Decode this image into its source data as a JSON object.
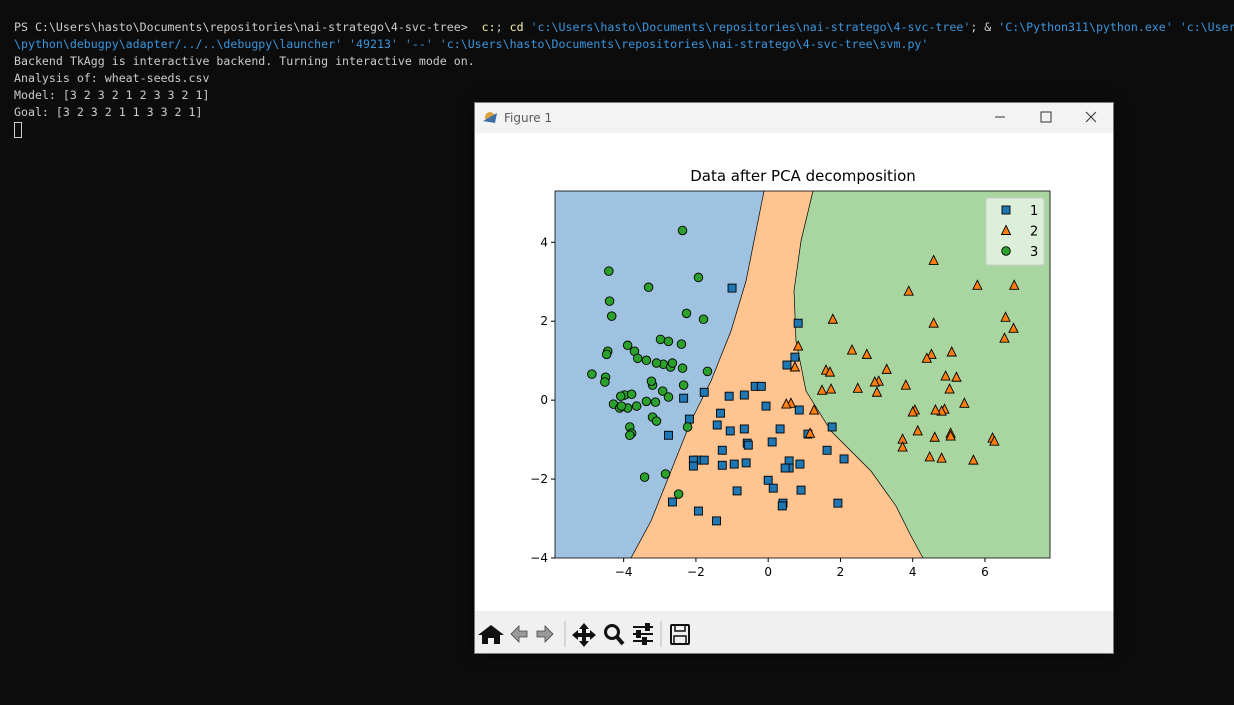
{
  "terminal": {
    "lines": [
      [
        {
          "text": "PS C:\\Users\\hasto\\Documents\\repositories\\nai-stratego\\4-svc-tree> ",
          "color": "#cccccc"
        },
        {
          "text": " c:",
          "color": "#f9f1a5"
        },
        {
          "text": "; ",
          "color": "#cccccc"
        },
        {
          "text": "cd",
          "color": "#f9f1a5"
        },
        {
          "text": " ",
          "color": "#cccccc"
        },
        {
          "text": "'c:\\Users\\hasto\\Documents\\repositories\\nai-stratego\\4-svc-tree'",
          "color": "#3a96dd"
        },
        {
          "text": "; & ",
          "color": "#cccccc"
        },
        {
          "text": "'C:\\Python311\\python.exe'",
          "color": "#3a96dd"
        },
        {
          "text": " ",
          "color": "#cccccc"
        },
        {
          "text": "'c:\\Users",
          "color": "#3a96dd"
        }
      ],
      [
        {
          "text": "\\python\\debugpy\\adapter/../..\\debugpy\\launcher' '49213' '--' 'c:\\Users\\hasto\\Documents\\repositories\\nai-stratego\\4-svc-tree\\svm.py'",
          "color": "#3a96dd"
        }
      ],
      [
        {
          "text": "Backend TkAgg is interactive backend. Turning interactive mode on.",
          "color": "#cccccc"
        }
      ],
      [
        {
          "text": "Analysis of: wheat-seeds.csv",
          "color": "#cccccc"
        }
      ],
      [
        {
          "text": "Model: [3 2 3 2 1 2 3 3 2 1]",
          "color": "#cccccc"
        }
      ],
      [
        {
          "text": "Goal: [3 2 3 2 1 1 3 3 2 1]",
          "color": "#cccccc"
        }
      ]
    ]
  },
  "window": {
    "title": "Figure 1"
  },
  "chart_data": {
    "type": "scatter",
    "title": "Data after PCA decomposition",
    "xlim": [
      -5.9,
      7.8
    ],
    "ylim": [
      -4,
      5.3
    ],
    "xticks": [
      {
        "value": -4,
        "label": "−4"
      },
      {
        "value": -2,
        "label": "−2"
      },
      0,
      2,
      4,
      6
    ],
    "yticks": [
      {
        "value": -4,
        "label": "−4"
      },
      {
        "value": -2,
        "label": "−2"
      },
      0,
      2,
      4
    ],
    "legend": "upper right",
    "series": [
      {
        "name": "1",
        "color": "#1f77b4",
        "marker": "s",
        "x": [
          -1.0,
          0.83,
          0.74,
          0.52,
          -1.77,
          -1.08,
          -0.36,
          -0.19,
          -2.34,
          -0.66,
          -1.32,
          -0.06,
          0.86,
          -1.41,
          -2.18,
          -0.66,
          -1.05,
          -0.58,
          -0.55,
          0.33,
          0.11,
          1.1,
          1.77,
          -2.76,
          -1.96,
          -1.27,
          -2.07,
          -2.07,
          -1.77,
          -0.94,
          -0.61,
          -1.27,
          0.58,
          0.58,
          0.88,
          1.63,
          2.1,
          0,
          0.14,
          0.41,
          0.39,
          0.91,
          -0.86,
          -1.93,
          -2.65,
          -1.43,
          1.93,
          0.47
        ],
        "y": [
          2.84,
          1.95,
          1.09,
          0.89,
          0.2,
          0.1,
          0.35,
          0.35,
          0.05,
          0.13,
          -0.33,
          -0.15,
          -0.25,
          -0.63,
          -0.48,
          -0.73,
          -0.78,
          -1.09,
          -1.14,
          -0.73,
          -1.06,
          -0.86,
          -0.68,
          -0.89,
          -1.52,
          -1.27,
          -1.52,
          -1.67,
          -1.52,
          -1.62,
          -1.59,
          -1.65,
          -1.54,
          -1.72,
          -1.62,
          -1.27,
          -1.49,
          -2.03,
          -2.23,
          -2.61,
          -2.68,
          -2.28,
          -2.3,
          -2.81,
          -2.58,
          -3.06,
          -2.61,
          -1.72
        ]
      },
      {
        "name": "2",
        "color": "#ff7f0e",
        "marker": "^",
        "x": [
          4.58,
          3.89,
          5.79,
          6.81,
          1.79,
          4.58,
          6.57,
          6.79,
          0.83,
          6.54,
          2.32,
          2.73,
          4.52,
          4.39,
          5.08,
          0.74,
          1.6,
          1.71,
          3.28,
          3.06,
          4.91,
          5.21,
          1.49,
          2.95,
          1.74,
          2.48,
          3.81,
          3.01,
          5.02,
          0.63,
          1.27,
          4.06,
          4.0,
          4.88,
          4.8,
          5.43,
          1.16,
          4.63,
          3.72,
          4.14,
          3.72,
          4.61,
          5.05,
          5.05,
          6.21,
          6.26,
          4.47,
          4.8,
          5.68,
          0.5
        ],
        "y": [
          3.54,
          2.76,
          2.91,
          2.91,
          2.05,
          1.95,
          2.1,
          1.82,
          1.37,
          1.57,
          1.27,
          1.16,
          1.16,
          1.06,
          1.22,
          0.84,
          0.76,
          0.71,
          0.78,
          0.48,
          0.61,
          0.58,
          0.25,
          0.46,
          0.28,
          0.3,
          0.38,
          0.2,
          0.28,
          -0.08,
          -0.25,
          -0.25,
          -0.3,
          -0.23,
          -0.28,
          -0.08,
          -0.84,
          -0.25,
          -0.99,
          -0.78,
          -1.19,
          -0.94,
          -0.84,
          -0.91,
          -0.96,
          -1.04,
          -1.44,
          -1.47,
          -1.52,
          -0.1
        ]
      },
      {
        "name": "3",
        "color": "#2ca02c",
        "marker": "o",
        "x": [
          -2.37,
          -4.41,
          -1.93,
          -4.39,
          -3.31,
          -4.33,
          -2.26,
          -1.79,
          -3.89,
          -2.98,
          -4.44,
          -3.7,
          -4.47,
          -2.76,
          -2.4,
          -3.61,
          -3.37,
          -2.9,
          -2.7,
          -2.65,
          -3.09,
          -2.37,
          -1.68,
          -4.88,
          -4.5,
          -4.52,
          -3.2,
          -2.92,
          -2.34,
          -3.97,
          -3.78,
          -4.08,
          -2.76,
          -4.28,
          -3.89,
          -4.11,
          -3.64,
          -3.37,
          -3.2,
          -3.09,
          -3.83,
          -3.78,
          -3.83,
          -2.23,
          -2.84,
          -3.42,
          -2.48,
          -3.12,
          -3.23,
          -4.06
        ],
        "y": [
          4.3,
          3.27,
          3.11,
          2.51,
          2.86,
          2.13,
          2.2,
          2.05,
          1.39,
          1.54,
          1.24,
          1.24,
          1.16,
          1.49,
          1.42,
          1.06,
          1.01,
          0.91,
          0.84,
          0.94,
          0.94,
          0.81,
          0.73,
          0.66,
          0.58,
          0.46,
          0.38,
          0.23,
          0.38,
          0.13,
          0.15,
          0.1,
          0.08,
          -0.1,
          -0.2,
          -0.2,
          -0.15,
          -0.03,
          -0.43,
          -0.53,
          -0.68,
          -0.84,
          -0.89,
          -0.68,
          -1.87,
          -1.95,
          -2.38,
          -0.05,
          0.48,
          -0.15
        ]
      }
    ]
  }
}
